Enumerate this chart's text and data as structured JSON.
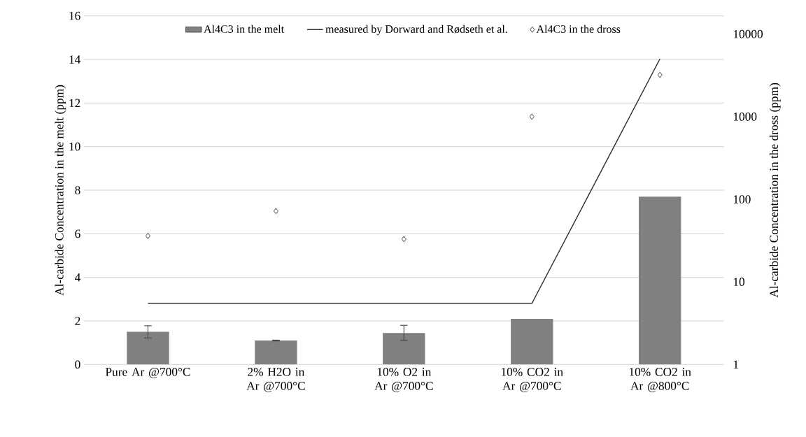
{
  "chart_data": {
    "type": "bar",
    "categories": [
      "Pure Ar @700°C",
      "2% H2O in Ar @700°C",
      "10% O2 in Ar @700°C",
      "10% CO2 in Ar @700°C",
      "10% CO2 in Ar @800°C"
    ],
    "series": [
      {
        "name": "Al4C3 in the melt",
        "color": "#808080",
        "values": [
          1.5,
          1.1,
          1.45,
          2.1,
          7.7
        ],
        "errors": [
          0.28,
          0.02,
          0.35,
          null,
          null
        ]
      },
      {
        "name": "measured by Dorward and Rødseth et al.",
        "type": "line",
        "axis": "y2",
        "color": "#303030",
        "values": [
          5.5,
          5.5,
          5.5,
          5.5,
          5000
        ]
      },
      {
        "name": "Al4C3 in the dross",
        "type": "scatter",
        "axis": "y2",
        "color": "#404040",
        "marker": "diamond",
        "values": [
          36,
          72,
          33,
          1000,
          3200
        ]
      }
    ],
    "ylabel": "Al-carbide  Concentration  in the melt (ppm)",
    "y2label": "Al-carbide  Concentration  in the dross (ppm)",
    "ylim": [
      0,
      16
    ],
    "yticks": [
      0,
      2,
      4,
      6,
      8,
      10,
      12,
      14,
      16
    ],
    "y2lim": [
      1,
      16600
    ],
    "y2ticks": [
      1,
      10,
      100,
      1000,
      10000
    ],
    "log": "y2",
    "grid": "y",
    "legend": "top"
  }
}
